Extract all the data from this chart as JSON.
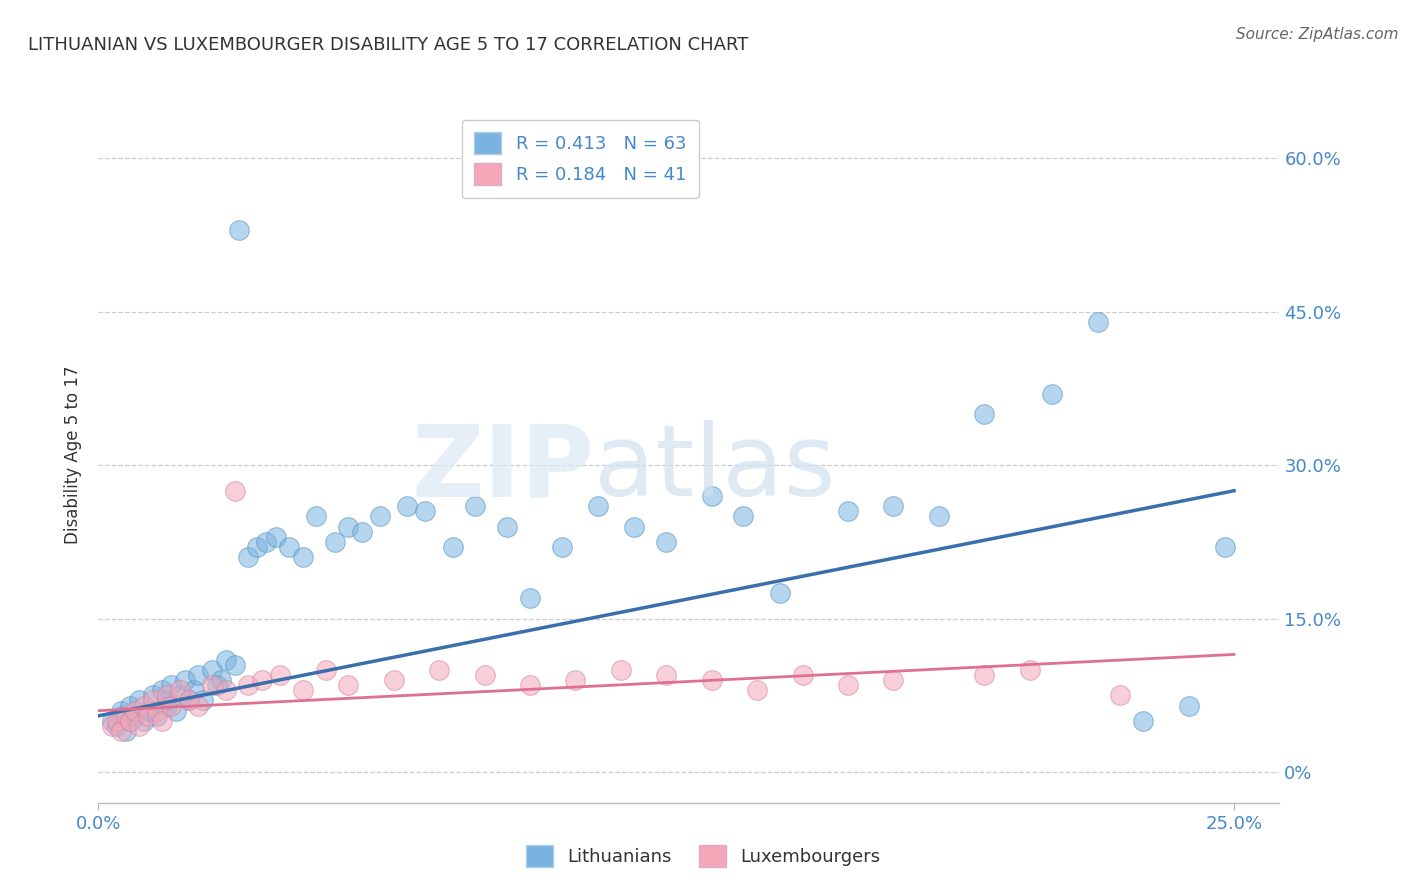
{
  "title": "LITHUANIAN VS LUXEMBOURGER DISABILITY AGE 5 TO 17 CORRELATION CHART",
  "source": "Source: ZipAtlas.com",
  "xlim": [
    0,
    26
  ],
  "ylim": [
    -3,
    65
  ],
  "ylabel_tick_vals": [
    0,
    15,
    30,
    45,
    60
  ],
  "ylabel_tick_labels": [
    "0%",
    "15.0%",
    "30.0%",
    "45.0%",
    "60.0%"
  ],
  "xtick_vals": [
    0,
    25
  ],
  "xtick_labels": [
    "0.0%",
    "25.0%"
  ],
  "legend_r1": "R = 0.413",
  "legend_n1": "N = 63",
  "legend_r2": "R = 0.184",
  "legend_n2": "N = 41",
  "blue_color": "#7ab3e0",
  "pink_color": "#f4a7b9",
  "blue_line_color": "#3a6fad",
  "pink_line_color": "#e07090",
  "label1": "Lithuanians",
  "label2": "Luxembourgers",
  "blue_scatter_x": [
    0.3,
    0.4,
    0.5,
    0.5,
    0.6,
    0.7,
    0.7,
    0.8,
    0.9,
    1.0,
    1.1,
    1.2,
    1.3,
    1.4,
    1.5,
    1.5,
    1.6,
    1.7,
    1.8,
    1.9,
    2.0,
    2.1,
    2.2,
    2.3,
    2.5,
    2.6,
    2.7,
    2.8,
    3.0,
    3.1,
    3.3,
    3.5,
    3.7,
    3.9,
    4.2,
    4.5,
    4.8,
    5.2,
    5.5,
    5.8,
    6.2,
    6.8,
    7.2,
    7.8,
    8.3,
    9.0,
    9.5,
    10.2,
    11.0,
    11.8,
    12.5,
    13.5,
    14.2,
    15.0,
    16.5,
    17.5,
    18.5,
    19.5,
    21.0,
    22.0,
    23.0,
    24.0,
    24.8
  ],
  "blue_scatter_y": [
    5.0,
    4.5,
    5.5,
    6.0,
    4.0,
    5.0,
    6.5,
    5.5,
    7.0,
    5.0,
    6.0,
    7.5,
    5.5,
    8.0,
    6.5,
    7.0,
    8.5,
    6.0,
    7.5,
    9.0,
    7.0,
    8.0,
    9.5,
    7.0,
    10.0,
    8.5,
    9.0,
    11.0,
    10.5,
    53.0,
    21.0,
    22.0,
    22.5,
    23.0,
    22.0,
    21.0,
    25.0,
    22.5,
    24.0,
    23.5,
    25.0,
    26.0,
    25.5,
    22.0,
    26.0,
    24.0,
    17.0,
    22.0,
    26.0,
    24.0,
    22.5,
    27.0,
    25.0,
    17.5,
    25.5,
    26.0,
    25.0,
    35.0,
    37.0,
    44.0,
    5.0,
    6.5,
    22.0
  ],
  "pink_scatter_x": [
    0.3,
    0.4,
    0.5,
    0.6,
    0.7,
    0.8,
    0.9,
    1.0,
    1.1,
    1.2,
    1.3,
    1.4,
    1.5,
    1.6,
    1.8,
    2.0,
    2.2,
    2.5,
    2.8,
    3.0,
    3.3,
    3.6,
    4.0,
    4.5,
    5.0,
    5.5,
    6.5,
    7.5,
    8.5,
    9.5,
    10.5,
    11.5,
    12.5,
    13.5,
    14.5,
    15.5,
    16.5,
    17.5,
    22.5,
    19.5,
    20.5
  ],
  "pink_scatter_y": [
    4.5,
    5.0,
    4.0,
    5.5,
    5.0,
    6.0,
    4.5,
    6.5,
    5.5,
    7.0,
    6.0,
    5.0,
    7.5,
    6.5,
    8.0,
    7.0,
    6.5,
    8.5,
    8.0,
    27.5,
    8.5,
    9.0,
    9.5,
    8.0,
    10.0,
    8.5,
    9.0,
    10.0,
    9.5,
    8.5,
    9.0,
    10.0,
    9.5,
    9.0,
    8.0,
    9.5,
    8.5,
    9.0,
    7.5,
    9.5,
    10.0
  ],
  "blue_trend_x": [
    0,
    25
  ],
  "blue_trend_y": [
    5.5,
    27.5
  ],
  "pink_trend_x": [
    0,
    25
  ],
  "pink_trend_y": [
    6.0,
    11.5
  ]
}
